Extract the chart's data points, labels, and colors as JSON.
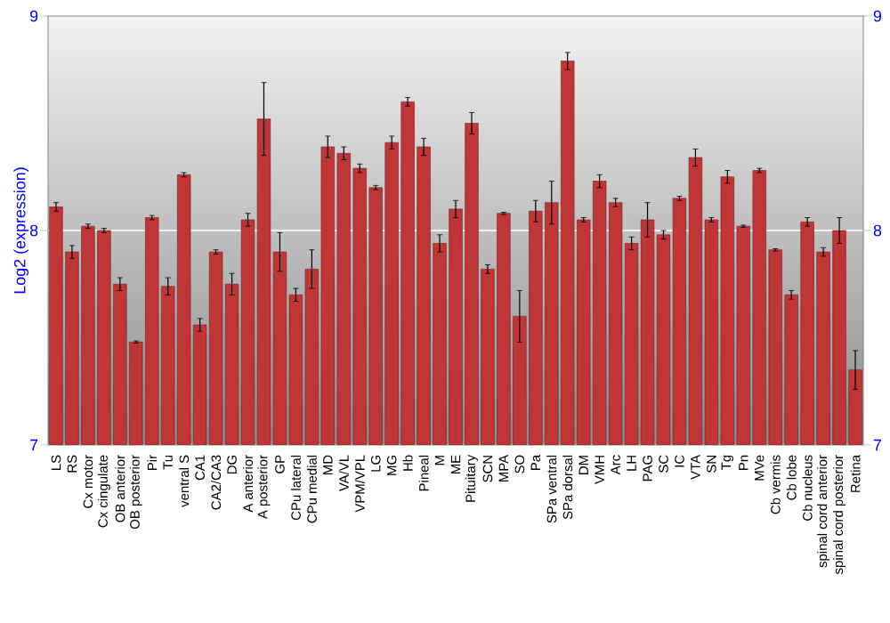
{
  "chart_data": {
    "type": "bar",
    "ylabel": "Log2 (expression)",
    "categories": [
      "LS",
      "RS",
      "Cx motor",
      "Cx cingulate",
      "OB anterior",
      "OB posterior",
      "Pir",
      "Tu",
      "ventral S",
      "CA1",
      "CA2/CA3",
      "DG",
      "A anterior",
      "A posterior",
      "GP",
      "CPu lateral",
      "CPu medial",
      "MD",
      "VA/VL",
      "VPM/VPL",
      "LG",
      "MG",
      "Hb",
      "Pineal",
      "M",
      "ME",
      "Pituitary",
      "SCN",
      "MPA",
      "SO",
      "Pa",
      "SPa ventral",
      "SPa dorsal",
      "DM",
      "VMH",
      "Arc",
      "LH",
      "PAG",
      "SC",
      "IC",
      "VTA",
      "SN",
      "Tg",
      "Pn",
      "MVe",
      "Cb vermis",
      "Cb lobe",
      "Cb nucleus",
      "spinal cord anterior",
      "spinal cord posterior",
      "Retina"
    ],
    "values": [
      8.11,
      7.9,
      8.02,
      8.0,
      7.75,
      7.48,
      8.06,
      7.74,
      8.26,
      7.56,
      7.9,
      7.75,
      8.05,
      8.52,
      7.9,
      7.7,
      7.82,
      8.39,
      8.36,
      8.29,
      8.2,
      8.41,
      8.6,
      8.39,
      7.94,
      8.1,
      8.5,
      7.82,
      8.08,
      7.6,
      8.09,
      8.13,
      8.79,
      8.05,
      8.23,
      8.13,
      7.94,
      8.05,
      7.98,
      8.15,
      8.34,
      8.05,
      8.25,
      8.02,
      8.28,
      7.91,
      7.7,
      8.04,
      7.9,
      8.0,
      7.35
    ],
    "errors": [
      0.02,
      0.03,
      0.01,
      0.01,
      0.03,
      0.005,
      0.01,
      0.04,
      0.01,
      0.03,
      0.01,
      0.05,
      0.03,
      0.17,
      0.09,
      0.03,
      0.09,
      0.05,
      0.03,
      0.02,
      0.01,
      0.03,
      0.02,
      0.04,
      0.04,
      0.04,
      0.05,
      0.02,
      0.005,
      0.12,
      0.05,
      0.1,
      0.04,
      0.01,
      0.03,
      0.02,
      0.03,
      0.08,
      0.02,
      0.01,
      0.04,
      0.01,
      0.03,
      0.005,
      0.01,
      0.005,
      0.02,
      0.02,
      0.02,
      0.06,
      0.09
    ],
    "color": "#c03535",
    "ylim": [
      7,
      9
    ],
    "yticks": [
      7,
      8,
      9
    ],
    "y2lim": [
      7,
      9
    ],
    "y2ticks": [
      7,
      8,
      9
    ],
    "grid": "y"
  }
}
